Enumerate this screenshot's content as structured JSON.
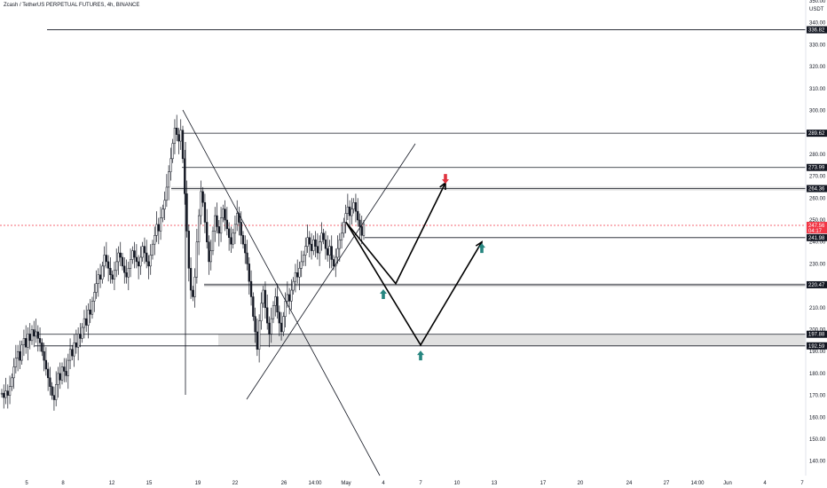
{
  "header": {
    "title": "Zcash / TetherUS PERPETUAL FUTURES, 4h, BINANCE"
  },
  "axis": {
    "currency": "USDT"
  },
  "colors": {
    "candle": "#131722",
    "zone_fill": "#e0e0e0",
    "current_price": "#f23645",
    "arrow_up": "#26857f",
    "arrow_down": "#e0333f",
    "tag_bg": "#131722"
  },
  "chart_data": {
    "type": "candlestick",
    "title": "Zcash / TetherUS PERPETUAL FUTURES, 4h, BINANCE",
    "ylabel": "USDT",
    "ylim": [
      135,
      350
    ],
    "y_ticks": [
      140,
      150,
      160,
      170,
      180,
      190,
      200,
      210,
      220,
      230,
      240,
      250,
      260,
      270,
      280,
      290,
      300,
      310,
      320,
      330,
      340,
      350
    ],
    "x_ticks": [
      "5",
      "8",
      "12",
      "15",
      "19",
      "22",
      "26",
      "14:00",
      "May",
      "4",
      "7",
      "10",
      "13",
      "17",
      "20",
      "24",
      "27",
      "14:00",
      "Jun",
      "4",
      "7"
    ],
    "candle_closes": [
      171,
      169,
      172,
      170,
      174,
      178,
      183,
      187,
      190,
      186,
      193,
      196,
      192,
      198,
      195,
      200,
      197,
      199,
      196,
      194,
      190,
      186,
      182,
      178,
      174,
      170,
      168,
      175,
      180,
      177,
      183,
      181,
      179,
      186,
      191,
      188,
      194,
      192,
      198,
      196,
      201,
      205,
      202,
      209,
      207,
      213,
      217,
      221,
      225,
      223,
      229,
      234,
      231,
      228,
      225,
      223,
      227,
      231,
      235,
      233,
      229,
      226,
      224,
      228,
      232,
      236,
      233,
      231,
      229,
      233,
      238,
      235,
      231,
      229,
      234,
      239,
      243,
      248,
      245,
      251,
      255,
      259,
      265,
      272,
      278,
      285,
      292,
      289,
      286,
      291,
      278,
      262,
      245,
      228,
      218,
      215,
      224,
      240,
      252,
      263,
      258,
      249,
      240,
      231,
      236,
      245,
      252,
      247,
      244,
      251,
      255,
      250,
      246,
      242,
      239,
      244,
      248,
      253,
      249,
      243,
      239,
      235,
      230,
      222,
      215,
      206,
      199,
      191,
      204,
      212,
      218,
      210,
      203,
      198,
      205,
      211,
      215,
      208,
      203,
      199,
      206,
      213,
      216,
      213,
      218,
      222,
      226,
      224,
      228,
      231,
      234,
      238,
      242,
      239,
      236,
      241,
      238,
      235,
      240,
      244,
      241,
      237,
      234,
      238,
      232,
      229,
      233,
      237,
      241,
      244,
      249,
      253,
      256,
      252,
      255,
      258,
      254,
      250,
      247,
      243,
      248
    ],
    "current_price": 247.56,
    "current_price_sub": "04:17",
    "horizontal_levels": [
      336.82,
      289.62,
      273.99,
      264.36,
      241.98,
      220.47,
      197.88,
      192.59
    ],
    "zones": [
      {
        "from": 263.5,
        "to": 265.2
      },
      {
        "from": 219.5,
        "to": 221.2
      },
      {
        "from": 192.59,
        "to": 197.88
      }
    ],
    "projection_paths": [
      [
        [
          "Apr 30",
          249
        ],
        [
          "May 5",
          221
        ],
        [
          "May 9",
          267
        ]
      ],
      [
        [
          "Apr 30",
          249
        ],
        [
          "May 7",
          193
        ],
        [
          "May 12",
          240
        ]
      ]
    ],
    "signals": [
      {
        "direction": "down",
        "date": "May 9",
        "price": 269
      },
      {
        "direction": "up",
        "date": "May 4",
        "price": 216
      },
      {
        "direction": "up",
        "date": "May 12",
        "price": 237
      },
      {
        "direction": "up",
        "date": "May 7",
        "price": 188
      }
    ],
    "grid": false
  }
}
